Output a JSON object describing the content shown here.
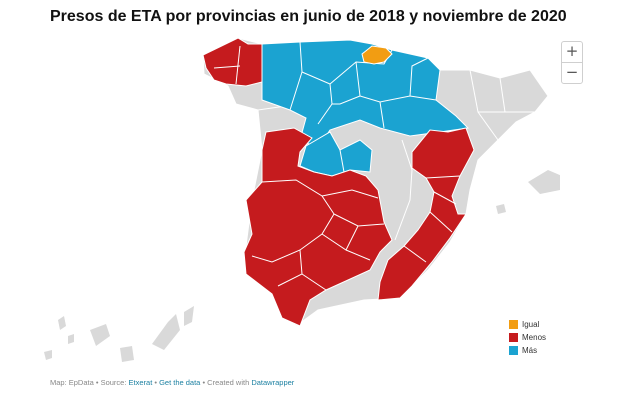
{
  "title": "Presos de ETA por provincias en junio de 2018 y noviembre de 2020",
  "zoom": {
    "in": "+",
    "out": "−"
  },
  "colors": {
    "igual": "#f29d12",
    "menos": "#c51b1e",
    "mas": "#1ba3d1",
    "nodata": "#d9d9d9",
    "border": "#ffffff"
  },
  "legend": [
    {
      "label": "Igual",
      "color": "#f29d12"
    },
    {
      "label": "Menos",
      "color": "#c51b1e"
    },
    {
      "label": "Más",
      "color": "#1ba3d1"
    }
  ],
  "footer": {
    "map_credit": "Map: EpData",
    "sep1": " • Source: ",
    "source": "Etxerat",
    "sep2": " • ",
    "get_data": "Get the data",
    "sep3": " • Created with ",
    "tool": "Datawrapper"
  }
}
